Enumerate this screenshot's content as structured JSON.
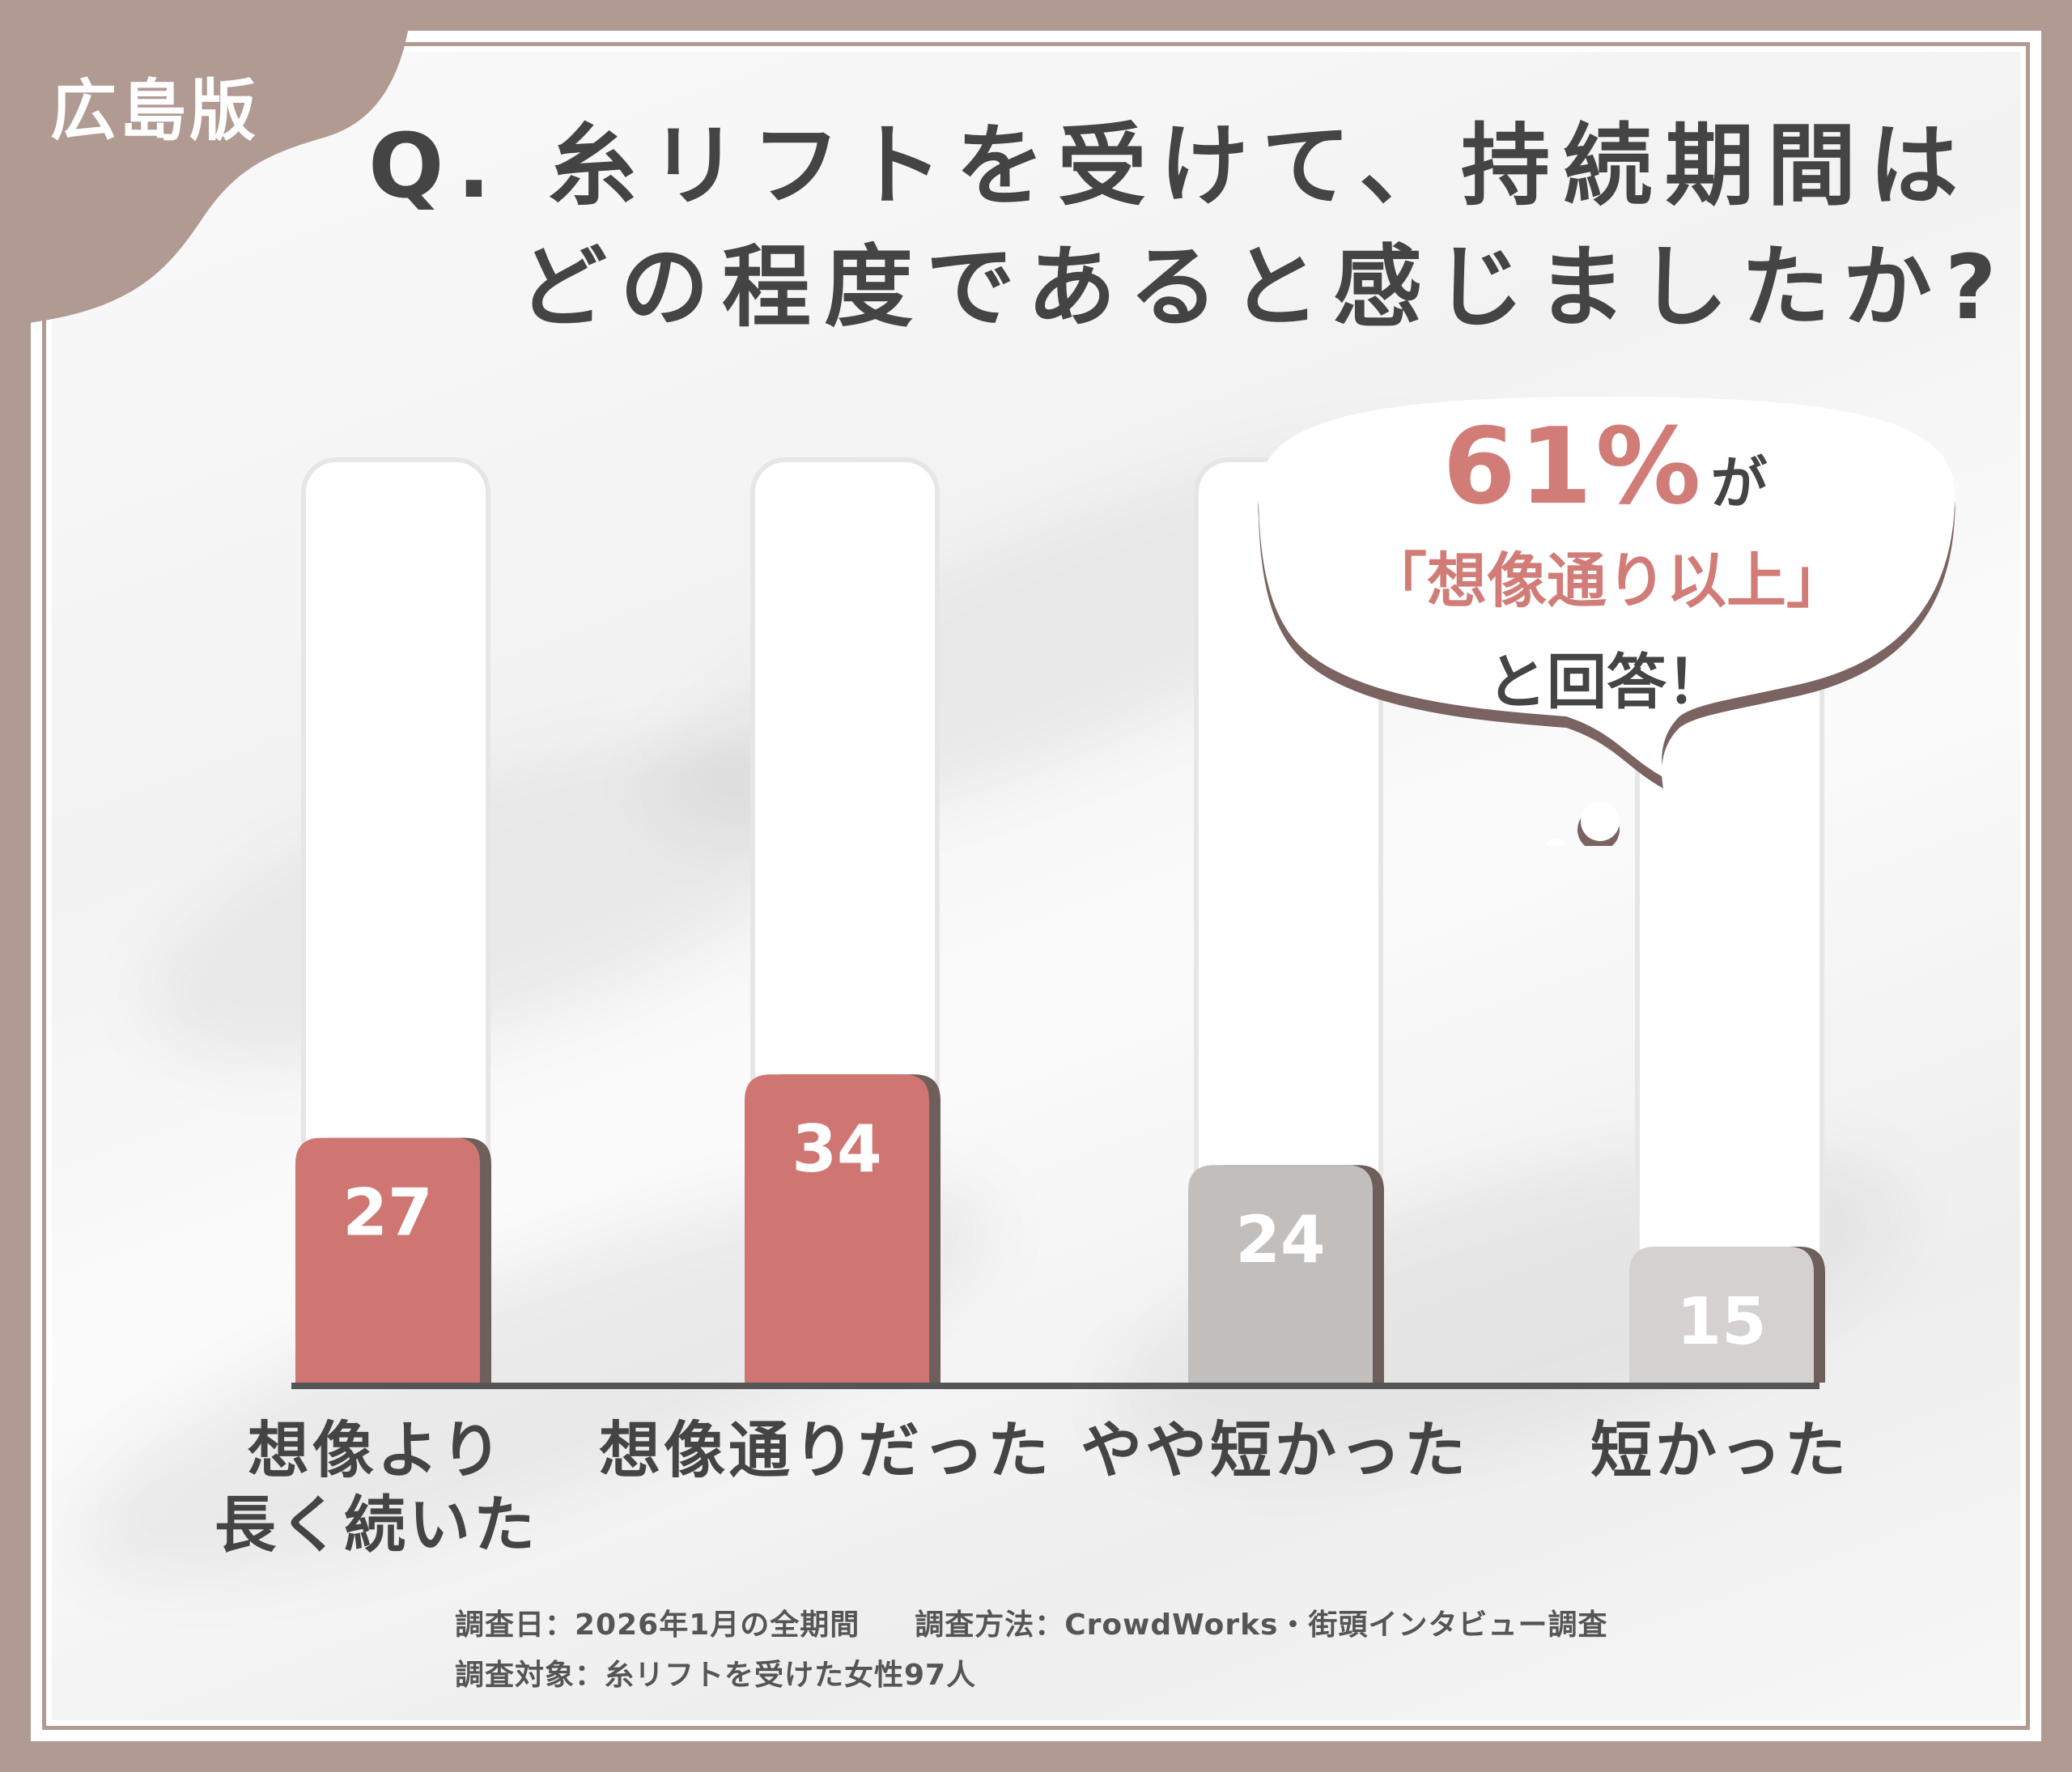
{
  "badge": "広島版",
  "title": {
    "line1": "Q. 糸リフトを受けて、持続期間は",
    "line2": "どの程度であると感じましたか?"
  },
  "callout": {
    "value": "61%",
    "suffix": "が",
    "highlight": "「想像通り以上」",
    "tail": "と回答！"
  },
  "chart_data": {
    "type": "bar",
    "categories": [
      "想像より\n長く続いた",
      "想像通りだった",
      "やや短かった",
      "短かった"
    ],
    "category_lines": [
      [
        "想像より",
        "長く続いた"
      ],
      [
        "想像通りだった"
      ],
      [
        "やや短かった"
      ],
      [
        "短かった"
      ]
    ],
    "values": [
      27,
      34,
      24,
      15
    ],
    "value_labels": [
      "27",
      "34",
      "24",
      "15"
    ],
    "bar_colors": [
      "#cf7672",
      "#cf7672",
      "#c2bebc",
      "#d4d1d0"
    ],
    "ylim": [
      0,
      100
    ],
    "title": "",
    "xlabel": "",
    "ylabel": "",
    "grid": false,
    "legend": "none"
  },
  "footnotes": {
    "date": "調査日：2026年1月の全期間",
    "method": "調査方法：CrowdWorks・街頭インタビュー調査",
    "subject": "調査対象：糸リフトを受けた女性97人"
  },
  "colors": {
    "frame": "#b09a92",
    "accent": "#cf7672",
    "text": "#444444",
    "axis": "#555555"
  }
}
